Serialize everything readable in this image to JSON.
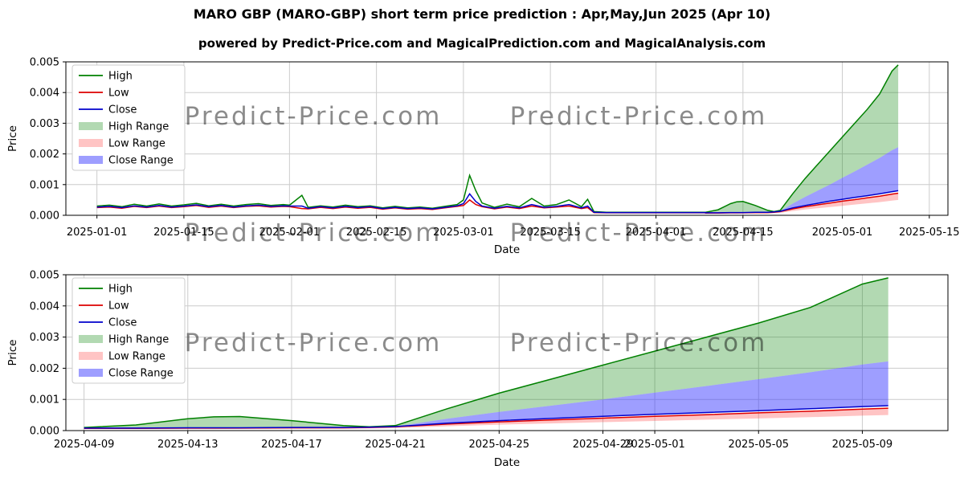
{
  "page": {
    "title": "MARO GBP (MARO-GBP) short term price prediction : Apr,May,Jun 2025 (Apr 10)",
    "subtitle": "powered by Predict-Price.com and MagicalPrediction.com and MagicalAnalysis.com",
    "watermark": "Predict-Price.com"
  },
  "colors": {
    "high_line": "#008000",
    "low_line": "#dd0000",
    "close_line": "#0000cc",
    "high_range_fill": "rgba(0,128,0,0.30)",
    "low_range_fill": "rgba(255,60,60,0.30)",
    "close_range_fill": "rgba(40,40,255,0.45)",
    "grid": "#cccccc",
    "axis": "#000000",
    "watermark": "#a0a0a0",
    "background": "#ffffff"
  },
  "chart_data": [
    {
      "type": "line",
      "name": "history-and-prediction",
      "xlabel": "Date",
      "ylabel": "Price",
      "ylim": [
        0,
        0.005
      ],
      "ytick_values": [
        0,
        0.001,
        0.002,
        0.003,
        0.004,
        0.005
      ],
      "ytick_labels": [
        "0.000",
        "0.001",
        "0.002",
        "0.003",
        "0.004",
        "0.005"
      ],
      "xlim": [
        -5,
        137
      ],
      "xtick_values": [
        0,
        14,
        31,
        45,
        59,
        73,
        90,
        104,
        120,
        134
      ],
      "xtick_labels": [
        "2025-01-01",
        "2025-01-15",
        "2025-02-01",
        "2025-02-15",
        "2025-03-01",
        "2025-03-15",
        "2025-04-01",
        "2025-04-15",
        "2025-05-01",
        "2025-05-15"
      ],
      "grid": true,
      "legend_position": "upper-left",
      "legend": [
        {
          "label": "High",
          "swatch": "line",
          "color_key": "high_line"
        },
        {
          "label": "Low",
          "swatch": "line",
          "color_key": "low_line"
        },
        {
          "label": "Close",
          "swatch": "line",
          "color_key": "close_line"
        },
        {
          "label": "High Range",
          "swatch": "band",
          "color_key": "high_range_fill"
        },
        {
          "label": "Low Range",
          "swatch": "band",
          "color_key": "low_range_fill"
        },
        {
          "label": "Close Range",
          "swatch": "band",
          "color_key": "close_range_fill"
        }
      ],
      "series": {
        "historical": {
          "days": [
            0,
            2,
            4,
            6,
            8,
            10,
            12,
            14,
            16,
            18,
            20,
            22,
            24,
            26,
            28,
            30,
            31,
            33,
            34,
            36,
            38,
            40,
            42,
            44,
            46,
            48,
            50,
            52,
            54,
            56,
            58,
            59,
            60,
            61,
            62,
            64,
            66,
            68,
            70,
            72,
            74,
            76,
            78,
            79,
            80,
            82,
            86,
            90,
            94,
            98
          ],
          "high": [
            0.0003,
            0.00033,
            0.00028,
            0.00036,
            0.0003,
            0.00037,
            0.0003,
            0.00034,
            0.00039,
            0.00031,
            0.00036,
            0.0003,
            0.00035,
            0.00038,
            0.00032,
            0.00035,
            0.00033,
            0.00065,
            0.00026,
            0.00031,
            0.00027,
            0.00033,
            0.00028,
            0.00031,
            0.00024,
            0.00029,
            0.00024,
            0.00027,
            0.00023,
            0.00029,
            0.00035,
            0.0005,
            0.0013,
            0.0008,
            0.0004,
            0.00026,
            0.00036,
            0.00028,
            0.00055,
            0.0003,
            0.00035,
            0.0005,
            0.00028,
            0.00052,
            0.00012,
            0.0001,
            0.0001,
            0.0001,
            0.0001,
            0.0001
          ],
          "low": [
            0.00025,
            0.00027,
            0.00023,
            0.00029,
            0.00025,
            0.0003,
            0.00025,
            0.00028,
            0.00032,
            0.00026,
            0.0003,
            0.00025,
            0.00029,
            0.00031,
            0.00027,
            0.00029,
            0.00028,
            0.00022,
            0.00021,
            0.00026,
            0.00022,
            0.00027,
            0.00023,
            0.00026,
            0.0002,
            0.00024,
            0.0002,
            0.00022,
            0.00019,
            0.00024,
            0.00029,
            0.00032,
            0.0005,
            0.00035,
            0.00028,
            0.00021,
            0.00027,
            0.00022,
            0.0003,
            0.00024,
            0.00027,
            0.0003,
            0.00022,
            0.00025,
            9e-05,
            8e-05,
            8e-05,
            8e-05,
            8e-05,
            8e-05
          ],
          "close": [
            0.00027,
            0.00029,
            0.00025,
            0.00031,
            0.00027,
            0.00032,
            0.00027,
            0.0003,
            0.00034,
            0.00028,
            0.00032,
            0.00027,
            0.00031,
            0.00033,
            0.00029,
            0.00031,
            0.0003,
            0.0003,
            0.00023,
            0.00028,
            0.00024,
            0.00029,
            0.00025,
            0.00028,
            0.00022,
            0.00026,
            0.00022,
            0.00024,
            0.00021,
            0.00026,
            0.00031,
            0.00038,
            0.0007,
            0.00045,
            0.0003,
            0.00023,
            0.00029,
            0.00024,
            0.00035,
            0.00026,
            0.00029,
            0.00035,
            0.00024,
            0.0003,
            0.0001,
            9e-05,
            9e-05,
            9e-05,
            9e-05,
            9e-05
          ]
        },
        "prediction": {
          "day_offset": 98,
          "days": [
            0,
            2,
            4,
            5,
            6,
            8,
            10,
            11,
            12,
            14,
            16,
            18,
            20,
            22,
            24,
            26,
            28,
            30,
            31
          ],
          "high_upper": [
            0.0001,
            0.00018,
            0.00038,
            0.00044,
            0.00045,
            0.00032,
            0.00016,
            0.00012,
            0.00016,
            0.0007,
            0.0012,
            0.00165,
            0.0021,
            0.00255,
            0.003,
            0.00345,
            0.00395,
            0.0047,
            0.0049
          ],
          "close_upper": [
            0.0001,
            0.0001,
            0.0001,
            0.0001,
            0.0001,
            0.0001,
            0.0001,
            0.00011,
            0.00013,
            0.00038,
            0.0006,
            0.0008,
            0.001,
            0.00122,
            0.00143,
            0.00165,
            0.00187,
            0.00212,
            0.00222
          ],
          "close": [
            8e-05,
            8e-05,
            9e-05,
            9e-05,
            9e-05,
            0.0001,
            0.0001,
            0.00011,
            0.00013,
            0.00024,
            0.00032,
            0.00039,
            0.00046,
            0.00052,
            0.00058,
            0.00064,
            0.0007,
            0.00077,
            0.0008
          ],
          "low_upper": [
            7e-05,
            7e-05,
            8e-05,
            8e-05,
            8e-05,
            9e-05,
            9e-05,
            0.0001,
            0.00012,
            0.00021,
            0.00028,
            0.00034,
            0.0004,
            0.00046,
            0.00051,
            0.00057,
            0.00062,
            0.00069,
            0.00072
          ],
          "low_lower": [
            5e-05,
            5e-05,
            5e-05,
            5e-05,
            6e-05,
            6e-05,
            6e-05,
            7e-05,
            8e-05,
            0.00014,
            0.00019,
            0.00023,
            0.00027,
            0.00031,
            0.00035,
            0.00039,
            0.00043,
            0.00048,
            0.0005
          ]
        }
      }
    },
    {
      "type": "line",
      "name": "prediction-zoom",
      "xlabel": "Date",
      "ylabel": "Price",
      "ylim": [
        0,
        0.005
      ],
      "ytick_values": [
        0,
        0.001,
        0.002,
        0.003,
        0.004,
        0.005
      ],
      "ytick_labels": [
        "0.000",
        "0.001",
        "0.002",
        "0.003",
        "0.004",
        "0.005"
      ],
      "xlim": [
        -0.7,
        33.3
      ],
      "xtick_values": [
        0,
        4,
        8,
        12,
        16,
        20,
        22,
        26,
        30
      ],
      "xtick_labels": [
        "2025-04-09",
        "2025-04-13",
        "2025-04-17",
        "2025-04-21",
        "2025-04-25",
        "2025-04-29",
        "2025-05-01",
        "2025-05-05",
        "2025-05-09"
      ],
      "grid": true,
      "legend_position": "upper-left",
      "legend": [
        {
          "label": "High",
          "swatch": "line",
          "color_key": "high_line"
        },
        {
          "label": "Low",
          "swatch": "line",
          "color_key": "low_line"
        },
        {
          "label": "Close",
          "swatch": "line",
          "color_key": "close_line"
        },
        {
          "label": "High Range",
          "swatch": "band",
          "color_key": "high_range_fill"
        },
        {
          "label": "Low Range",
          "swatch": "band",
          "color_key": "low_range_fill"
        },
        {
          "label": "Close Range",
          "swatch": "band",
          "color_key": "close_range_fill"
        }
      ],
      "series": {
        "prediction": {
          "day_offset": 0,
          "days": [
            0,
            2,
            4,
            5,
            6,
            8,
            10,
            11,
            12,
            14,
            16,
            18,
            20,
            22,
            24,
            26,
            28,
            30,
            31
          ],
          "high_upper": [
            0.0001,
            0.00018,
            0.00038,
            0.00044,
            0.00045,
            0.00032,
            0.00016,
            0.00012,
            0.00016,
            0.0007,
            0.0012,
            0.00165,
            0.0021,
            0.00255,
            0.003,
            0.00345,
            0.00395,
            0.0047,
            0.0049
          ],
          "close_upper": [
            0.0001,
            0.0001,
            0.0001,
            0.0001,
            0.0001,
            0.0001,
            0.0001,
            0.00011,
            0.00013,
            0.00038,
            0.0006,
            0.0008,
            0.001,
            0.00122,
            0.00143,
            0.00165,
            0.00187,
            0.00212,
            0.00222
          ],
          "close": [
            8e-05,
            8e-05,
            9e-05,
            9e-05,
            9e-05,
            0.0001,
            0.0001,
            0.00011,
            0.00013,
            0.00024,
            0.00032,
            0.00039,
            0.00046,
            0.00052,
            0.00058,
            0.00064,
            0.0007,
            0.00077,
            0.0008
          ],
          "low_upper": [
            7e-05,
            7e-05,
            8e-05,
            8e-05,
            8e-05,
            9e-05,
            9e-05,
            0.0001,
            0.00012,
            0.00021,
            0.00028,
            0.00034,
            0.0004,
            0.00046,
            0.00051,
            0.00057,
            0.00062,
            0.00069,
            0.00072
          ],
          "low_lower": [
            5e-05,
            5e-05,
            5e-05,
            5e-05,
            6e-05,
            6e-05,
            6e-05,
            7e-05,
            8e-05,
            0.00014,
            0.00019,
            0.00023,
            0.00027,
            0.00031,
            0.00035,
            0.00039,
            0.00043,
            0.00048,
            0.0005
          ]
        }
      }
    }
  ]
}
